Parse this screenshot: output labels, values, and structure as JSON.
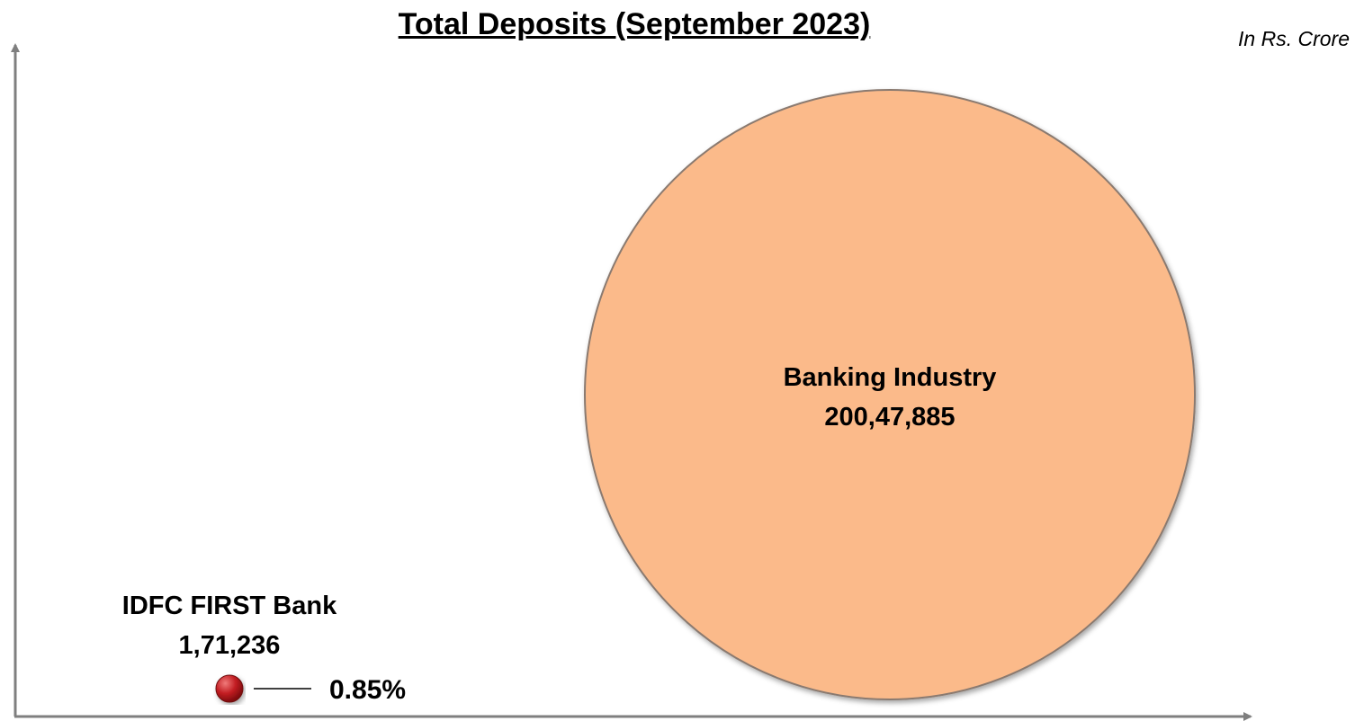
{
  "chart_data": {
    "type": "bubble",
    "title": "Total Deposits (September 2023)",
    "unit_note": "In Rs. Crore",
    "bubbles": [
      {
        "name": "Banking Industry",
        "value": 20047885,
        "value_label": "200,47,885",
        "color": "#FBBA8A"
      },
      {
        "name": "IDFC FIRST Bank",
        "value": 171236,
        "value_label": "1,71,236",
        "share_label": "0.85%",
        "color": "#B3161B"
      }
    ],
    "axis_color": "#7F7F7F"
  }
}
